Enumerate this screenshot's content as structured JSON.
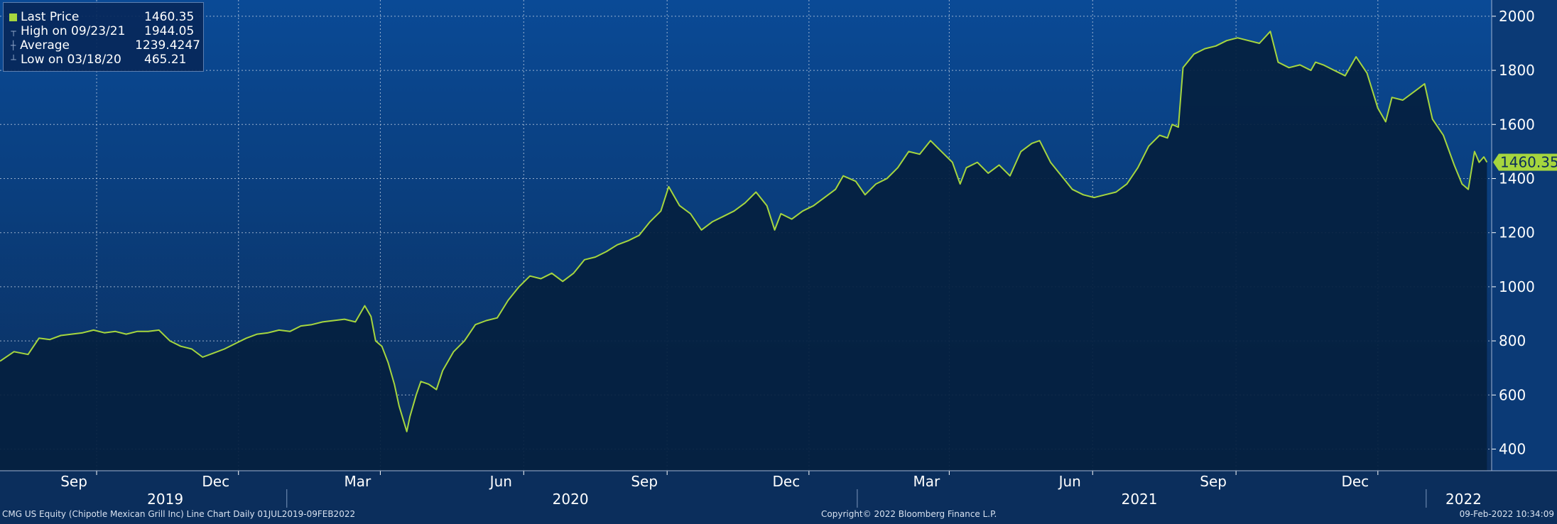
{
  "legend": {
    "items": [
      {
        "label": "Last Price",
        "value": "1460.35",
        "marker": "swatch"
      },
      {
        "label": "High on 09/23/21",
        "value": "1944.05",
        "marker": "high-tick-icon"
      },
      {
        "label": "Average",
        "value": "1239.4247",
        "marker": "average-tick-icon"
      },
      {
        "label": "Low on 03/18/20",
        "value": "465.21",
        "marker": "low-tick-icon"
      }
    ]
  },
  "footer": {
    "left": "CMG US Equity (Chipotle Mexican Grill Inc) Line Chart  Daily 01JUL2019-09FEB2022",
    "center": "Copyright© 2022 Bloomberg Finance L.P.",
    "right": "09-Feb-2022 10:34:09"
  },
  "colors": {
    "background_top": "#0a4a96",
    "background_bottom": "#0b2e5c",
    "area_fill": "#05203f",
    "line": "#a6d63e",
    "grid": "#c8d4e6",
    "axis_text": "#ffffff"
  },
  "chart_data": {
    "type": "area",
    "ylim": [
      320,
      2060
    ],
    "xlim": [
      "2019-07-01",
      "2022-02-12"
    ],
    "yticks": [
      400,
      600,
      800,
      1000,
      1200,
      1400,
      1600,
      1800,
      2000
    ],
    "month_ticks": [
      {
        "date": "2019-09-01",
        "label": "Sep"
      },
      {
        "date": "2019-12-01",
        "label": "Dec"
      },
      {
        "date": "2020-03-01",
        "label": "Mar"
      },
      {
        "date": "2020-06-01",
        "label": "Jun"
      },
      {
        "date": "2020-09-01",
        "label": "Sep"
      },
      {
        "date": "2020-12-01",
        "label": "Dec"
      },
      {
        "date": "2021-03-01",
        "label": "Mar"
      },
      {
        "date": "2021-06-01",
        "label": "Jun"
      },
      {
        "date": "2021-09-01",
        "label": "Sep"
      },
      {
        "date": "2021-12-01",
        "label": "Dec"
      }
    ],
    "year_ticks": [
      {
        "date": "2020-01-01",
        "label": "2019",
        "label_date": "2019-10-15"
      },
      {
        "date": "2021-01-01",
        "label": "2020",
        "label_date": "2020-07-01"
      },
      {
        "date": "2022-01-01",
        "label": "2021",
        "label_date": "2021-07-01"
      },
      {
        "date": "",
        "label": "2022",
        "label_date": "2022-01-25"
      }
    ],
    "last_price_label": "1460.35",
    "series": [
      {
        "points": [
          [
            "2019-07-01",
            725
          ],
          [
            "2019-07-10",
            760
          ],
          [
            "2019-07-19",
            750
          ],
          [
            "2019-07-26",
            810
          ],
          [
            "2019-08-02",
            805
          ],
          [
            "2019-08-09",
            820
          ],
          [
            "2019-08-16",
            825
          ],
          [
            "2019-08-23",
            830
          ],
          [
            "2019-08-30",
            840
          ],
          [
            "2019-09-06",
            830
          ],
          [
            "2019-09-13",
            835
          ],
          [
            "2019-09-20",
            825
          ],
          [
            "2019-09-27",
            835
          ],
          [
            "2019-10-04",
            835
          ],
          [
            "2019-10-11",
            840
          ],
          [
            "2019-10-18",
            800
          ],
          [
            "2019-10-25",
            780
          ],
          [
            "2019-11-01",
            770
          ],
          [
            "2019-11-08",
            740
          ],
          [
            "2019-11-15",
            755
          ],
          [
            "2019-11-22",
            770
          ],
          [
            "2019-11-29",
            790
          ],
          [
            "2019-12-06",
            810
          ],
          [
            "2019-12-13",
            825
          ],
          [
            "2019-12-20",
            830
          ],
          [
            "2019-12-27",
            840
          ],
          [
            "2020-01-03",
            835
          ],
          [
            "2020-01-10",
            855
          ],
          [
            "2020-01-17",
            860
          ],
          [
            "2020-01-24",
            870
          ],
          [
            "2020-01-31",
            875
          ],
          [
            "2020-02-07",
            880
          ],
          [
            "2020-02-14",
            870
          ],
          [
            "2020-02-20",
            930
          ],
          [
            "2020-02-24",
            890
          ],
          [
            "2020-02-27",
            800
          ],
          [
            "2020-03-02",
            780
          ],
          [
            "2020-03-06",
            720
          ],
          [
            "2020-03-10",
            640
          ],
          [
            "2020-03-13",
            560
          ],
          [
            "2020-03-18",
            465
          ],
          [
            "2020-03-20",
            520
          ],
          [
            "2020-03-24",
            600
          ],
          [
            "2020-03-27",
            650
          ],
          [
            "2020-04-01",
            640
          ],
          [
            "2020-04-06",
            620
          ],
          [
            "2020-04-10",
            690
          ],
          [
            "2020-04-17",
            760
          ],
          [
            "2020-04-24",
            800
          ],
          [
            "2020-05-01",
            860
          ],
          [
            "2020-05-08",
            875
          ],
          [
            "2020-05-15",
            885
          ],
          [
            "2020-05-22",
            950
          ],
          [
            "2020-05-29",
            1000
          ],
          [
            "2020-06-05",
            1040
          ],
          [
            "2020-06-12",
            1030
          ],
          [
            "2020-06-19",
            1050
          ],
          [
            "2020-06-26",
            1020
          ],
          [
            "2020-07-03",
            1050
          ],
          [
            "2020-07-10",
            1100
          ],
          [
            "2020-07-17",
            1110
          ],
          [
            "2020-07-24",
            1130
          ],
          [
            "2020-07-31",
            1155
          ],
          [
            "2020-08-07",
            1170
          ],
          [
            "2020-08-14",
            1190
          ],
          [
            "2020-08-21",
            1240
          ],
          [
            "2020-08-28",
            1280
          ],
          [
            "2020-09-02",
            1370
          ],
          [
            "2020-09-09",
            1300
          ],
          [
            "2020-09-16",
            1270
          ],
          [
            "2020-09-23",
            1210
          ],
          [
            "2020-09-30",
            1240
          ],
          [
            "2020-10-07",
            1260
          ],
          [
            "2020-10-14",
            1280
          ],
          [
            "2020-10-21",
            1310
          ],
          [
            "2020-10-28",
            1350
          ],
          [
            "2020-11-04",
            1300
          ],
          [
            "2020-11-09",
            1210
          ],
          [
            "2020-11-13",
            1270
          ],
          [
            "2020-11-20",
            1250
          ],
          [
            "2020-11-27",
            1280
          ],
          [
            "2020-12-04",
            1300
          ],
          [
            "2020-12-11",
            1330
          ],
          [
            "2020-12-18",
            1360
          ],
          [
            "2020-12-23",
            1410
          ],
          [
            "2020-12-31",
            1390
          ],
          [
            "2021-01-06",
            1340
          ],
          [
            "2021-01-13",
            1380
          ],
          [
            "2021-01-20",
            1400
          ],
          [
            "2021-01-27",
            1440
          ],
          [
            "2021-02-03",
            1500
          ],
          [
            "2021-02-10",
            1490
          ],
          [
            "2021-02-17",
            1540
          ],
          [
            "2021-02-24",
            1500
          ],
          [
            "2021-03-03",
            1460
          ],
          [
            "2021-03-08",
            1380
          ],
          [
            "2021-03-12",
            1440
          ],
          [
            "2021-03-19",
            1460
          ],
          [
            "2021-03-26",
            1420
          ],
          [
            "2021-04-02",
            1450
          ],
          [
            "2021-04-09",
            1410
          ],
          [
            "2021-04-16",
            1500
          ],
          [
            "2021-04-23",
            1530
          ],
          [
            "2021-04-28",
            1540
          ],
          [
            "2021-05-05",
            1460
          ],
          [
            "2021-05-12",
            1410
          ],
          [
            "2021-05-19",
            1360
          ],
          [
            "2021-05-26",
            1340
          ],
          [
            "2021-06-02",
            1330
          ],
          [
            "2021-06-09",
            1340
          ],
          [
            "2021-06-16",
            1350
          ],
          [
            "2021-06-23",
            1380
          ],
          [
            "2021-06-30",
            1440
          ],
          [
            "2021-07-07",
            1520
          ],
          [
            "2021-07-14",
            1560
          ],
          [
            "2021-07-19",
            1550
          ],
          [
            "2021-07-22",
            1600
          ],
          [
            "2021-07-26",
            1590
          ],
          [
            "2021-07-29",
            1810
          ],
          [
            "2021-08-05",
            1860
          ],
          [
            "2021-08-12",
            1880
          ],
          [
            "2021-08-19",
            1890
          ],
          [
            "2021-08-26",
            1910
          ],
          [
            "2021-09-02",
            1920
          ],
          [
            "2021-09-09",
            1910
          ],
          [
            "2021-09-16",
            1900
          ],
          [
            "2021-09-23",
            1944
          ],
          [
            "2021-09-28",
            1830
          ],
          [
            "2021-10-05",
            1810
          ],
          [
            "2021-10-12",
            1820
          ],
          [
            "2021-10-19",
            1800
          ],
          [
            "2021-10-22",
            1830
          ],
          [
            "2021-10-27",
            1820
          ],
          [
            "2021-11-03",
            1800
          ],
          [
            "2021-11-10",
            1780
          ],
          [
            "2021-11-17",
            1850
          ],
          [
            "2021-11-24",
            1790
          ],
          [
            "2021-12-01",
            1660
          ],
          [
            "2021-12-06",
            1610
          ],
          [
            "2021-12-10",
            1700
          ],
          [
            "2021-12-17",
            1690
          ],
          [
            "2021-12-24",
            1720
          ],
          [
            "2021-12-31",
            1750
          ],
          [
            "2022-01-05",
            1620
          ],
          [
            "2022-01-12",
            1560
          ],
          [
            "2022-01-19",
            1450
          ],
          [
            "2022-01-24",
            1380
          ],
          [
            "2022-01-28",
            1360
          ],
          [
            "2022-02-01",
            1500
          ],
          [
            "2022-02-04",
            1460
          ],
          [
            "2022-02-07",
            1480
          ],
          [
            "2022-02-09",
            1460.35
          ]
        ]
      }
    ]
  }
}
